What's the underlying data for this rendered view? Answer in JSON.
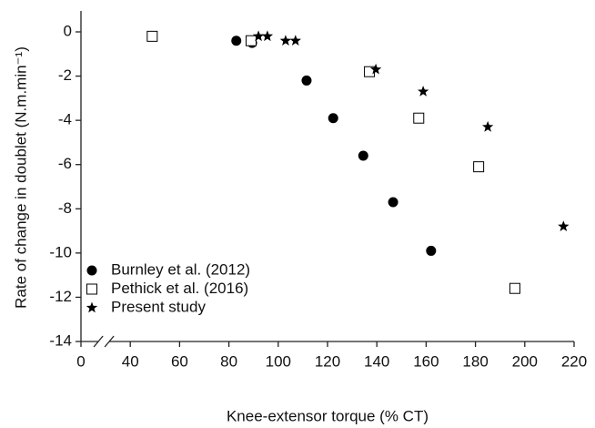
{
  "chart_data": {
    "type": "scatter",
    "xlabel": "Knee-extensor torque (% CT)",
    "ylabel": "Rate of change in doublet (N.m.min⁻¹)",
    "xlim": [
      0,
      220
    ],
    "ylim": [
      -14,
      0
    ],
    "xticks": [
      0,
      40,
      60,
      80,
      100,
      120,
      140,
      160,
      180,
      200,
      220
    ],
    "yticks": [
      0,
      -2,
      -4,
      -6,
      -8,
      -10,
      -12,
      -14
    ],
    "x_axis_break": [
      0,
      40
    ],
    "legend": "lower left",
    "series": [
      {
        "name": "Burnley et al. (2012)",
        "marker": "circle",
        "color": "#000000",
        "x": [
          83,
          89.4,
          111.5,
          122.3,
          134.5,
          146.6,
          162
        ],
        "values": [
          -0.4,
          -0.5,
          -2.2,
          -3.9,
          -5.6,
          -7.7,
          -9.9
        ]
      },
      {
        "name": "Pethick et al. (2016)",
        "marker": "square",
        "color": "#000000",
        "x": [
          48.9,
          89,
          137,
          157,
          181.3,
          196
        ],
        "values": [
          -0.2,
          -0.4,
          -1.8,
          -3.9,
          -6.1,
          -11.6
        ]
      },
      {
        "name": "Present study",
        "marker": "star",
        "color": "#000000",
        "x": [
          92,
          95.6,
          103,
          107,
          139.6,
          158.8,
          185,
          215.7
        ],
        "values": [
          -0.2,
          -0.2,
          -0.4,
          -0.4,
          -1.7,
          -2.7,
          -4.3,
          -8.8
        ]
      }
    ]
  }
}
